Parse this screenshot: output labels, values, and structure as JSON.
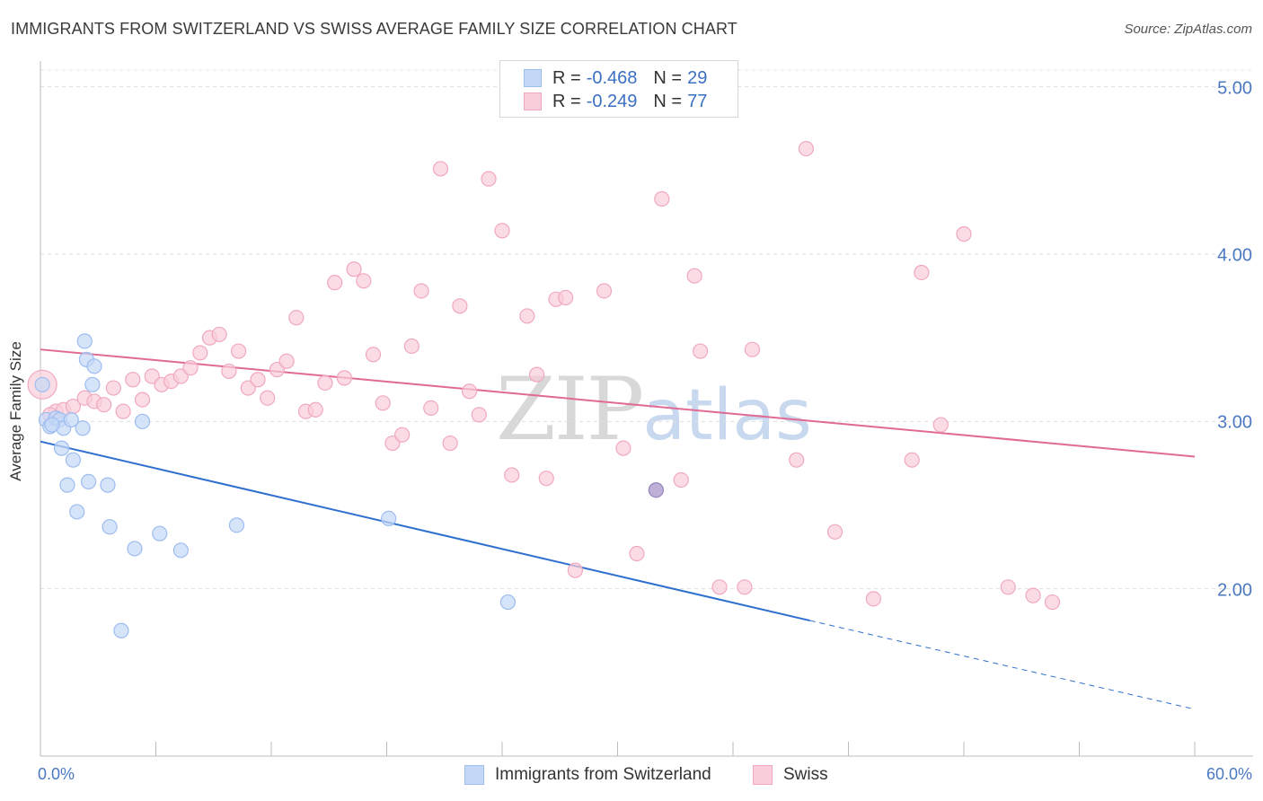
{
  "header": {
    "title": "IMMIGRANTS FROM SWITZERLAND VS SWISS AVERAGE FAMILY SIZE CORRELATION CHART",
    "source": "Source: ZipAtlas.com"
  },
  "watermark": {
    "zip": "ZIP",
    "atlas": "atlas"
  },
  "legend": {
    "rows": [
      {
        "r_label": "R =",
        "r_value": "-0.468",
        "n_label": "N =",
        "n_value": "29",
        "color": "#9dbcf0",
        "fill": "#c4d8f7"
      },
      {
        "r_label": "R =",
        "r_value": "-0.249",
        "n_label": "N =",
        "n_value": "77",
        "color": "#f0a8c0",
        "fill": "#f9cdd9"
      }
    ]
  },
  "bottom_legend": {
    "items": [
      {
        "label": "Immigrants from Switzerland",
        "color": "#9dbcf0",
        "fill": "#c4d8f7"
      },
      {
        "label": "Swiss",
        "color": "#f0a8c0",
        "fill": "#f9cdd9"
      }
    ]
  },
  "chart_data": {
    "type": "scatter",
    "title": "IMMIGRANTS FROM SWITZERLAND VS SWISS AVERAGE FAMILY SIZE CORRELATION CHART",
    "xlabel": "",
    "ylabel": "Average Family Size",
    "xlim": [
      0,
      60
    ],
    "ylim": [
      1.0,
      5.1
    ],
    "x_tick_labels": [
      "0.0%",
      "60.0%"
    ],
    "y_ticks": [
      2.0,
      3.0,
      4.0,
      5.0
    ],
    "y_tick_labels": [
      "2.00",
      "3.00",
      "4.00",
      "5.00"
    ],
    "grid": true,
    "series": [
      {
        "name": "Immigrants from Switzerland",
        "color": "#9dbcf0",
        "fill": "#c4d8f7",
        "trend_color": "#2f6fd0",
        "trend": {
          "x0": 0,
          "y0": 2.88,
          "x1": 40,
          "y1": 1.81,
          "dash_to_x": 60,
          "dash_to_y": 1.28
        },
        "points": [
          [
            0.1,
            3.22
          ],
          [
            0.3,
            3.01
          ],
          [
            0.5,
            2.97
          ],
          [
            0.8,
            3.02
          ],
          [
            1.0,
            3.01
          ],
          [
            1.1,
            2.84
          ],
          [
            1.2,
            2.96
          ],
          [
            1.4,
            2.62
          ],
          [
            1.6,
            3.01
          ],
          [
            1.7,
            2.77
          ],
          [
            1.9,
            2.46
          ],
          [
            2.2,
            2.96
          ],
          [
            2.3,
            3.48
          ],
          [
            2.4,
            3.37
          ],
          [
            2.5,
            2.64
          ],
          [
            2.7,
            3.22
          ],
          [
            2.8,
            3.33
          ],
          [
            3.5,
            2.62
          ],
          [
            3.6,
            2.37
          ],
          [
            4.2,
            1.75
          ],
          [
            4.9,
            2.24
          ],
          [
            5.3,
            3.0
          ],
          [
            6.2,
            2.33
          ],
          [
            7.3,
            2.23
          ],
          [
            10.2,
            2.38
          ],
          [
            18.1,
            2.42
          ],
          [
            24.3,
            1.92
          ],
          [
            32.0,
            2.59
          ],
          [
            0.6,
            2.98
          ]
        ]
      },
      {
        "name": "Swiss",
        "color": "#f0a8c0",
        "fill": "#f9cdd9",
        "trend_color": "#e06a93",
        "trend": {
          "x0": 0,
          "y0": 3.43,
          "x1": 60,
          "y1": 2.79
        },
        "points": [
          [
            0.1,
            3.22
          ],
          [
            0.8,
            3.06
          ],
          [
            1.2,
            3.07
          ],
          [
            1.7,
            3.09
          ],
          [
            2.3,
            3.14
          ],
          [
            2.8,
            3.12
          ],
          [
            3.3,
            3.1
          ],
          [
            3.8,
            3.2
          ],
          [
            4.3,
            3.06
          ],
          [
            4.8,
            3.25
          ],
          [
            5.3,
            3.13
          ],
          [
            5.8,
            3.27
          ],
          [
            6.3,
            3.22
          ],
          [
            6.8,
            3.24
          ],
          [
            7.3,
            3.27
          ],
          [
            7.8,
            3.32
          ],
          [
            8.3,
            3.41
          ],
          [
            8.8,
            3.5
          ],
          [
            9.3,
            3.52
          ],
          [
            9.8,
            3.3
          ],
          [
            10.3,
            3.42
          ],
          [
            10.8,
            3.2
          ],
          [
            11.3,
            3.25
          ],
          [
            11.8,
            3.14
          ],
          [
            12.3,
            3.31
          ],
          [
            12.8,
            3.36
          ],
          [
            13.3,
            3.62
          ],
          [
            13.8,
            3.06
          ],
          [
            14.3,
            3.07
          ],
          [
            14.8,
            3.23
          ],
          [
            15.3,
            3.83
          ],
          [
            15.8,
            3.26
          ],
          [
            16.3,
            3.91
          ],
          [
            16.8,
            3.84
          ],
          [
            17.3,
            3.4
          ],
          [
            17.8,
            3.11
          ],
          [
            18.3,
            2.87
          ],
          [
            18.8,
            2.92
          ],
          [
            19.3,
            3.45
          ],
          [
            19.8,
            3.78
          ],
          [
            20.3,
            3.08
          ],
          [
            20.8,
            4.51
          ],
          [
            21.3,
            2.87
          ],
          [
            21.8,
            3.69
          ],
          [
            22.3,
            3.18
          ],
          [
            22.8,
            3.04
          ],
          [
            23.3,
            4.45
          ],
          [
            24.0,
            4.14
          ],
          [
            24.5,
            2.68
          ],
          [
            25.3,
            3.63
          ],
          [
            25.8,
            3.28
          ],
          [
            26.3,
            2.66
          ],
          [
            26.8,
            3.73
          ],
          [
            27.3,
            3.74
          ],
          [
            27.8,
            2.11
          ],
          [
            29.3,
            3.78
          ],
          [
            30.3,
            2.84
          ],
          [
            31.0,
            2.21
          ],
          [
            32.3,
            4.33
          ],
          [
            33.3,
            2.65
          ],
          [
            34.0,
            3.87
          ],
          [
            34.3,
            3.42
          ],
          [
            35.3,
            2.01
          ],
          [
            36.6,
            2.01
          ],
          [
            37.0,
            3.43
          ],
          [
            39.3,
            2.77
          ],
          [
            39.8,
            4.63
          ],
          [
            41.3,
            2.34
          ],
          [
            43.3,
            1.94
          ],
          [
            45.3,
            2.77
          ],
          [
            45.8,
            3.89
          ],
          [
            46.8,
            2.98
          ],
          [
            48.0,
            4.12
          ],
          [
            50.3,
            2.01
          ],
          [
            51.6,
            1.96
          ],
          [
            52.6,
            1.92
          ],
          [
            0.5,
            3.04
          ]
        ]
      }
    ]
  }
}
